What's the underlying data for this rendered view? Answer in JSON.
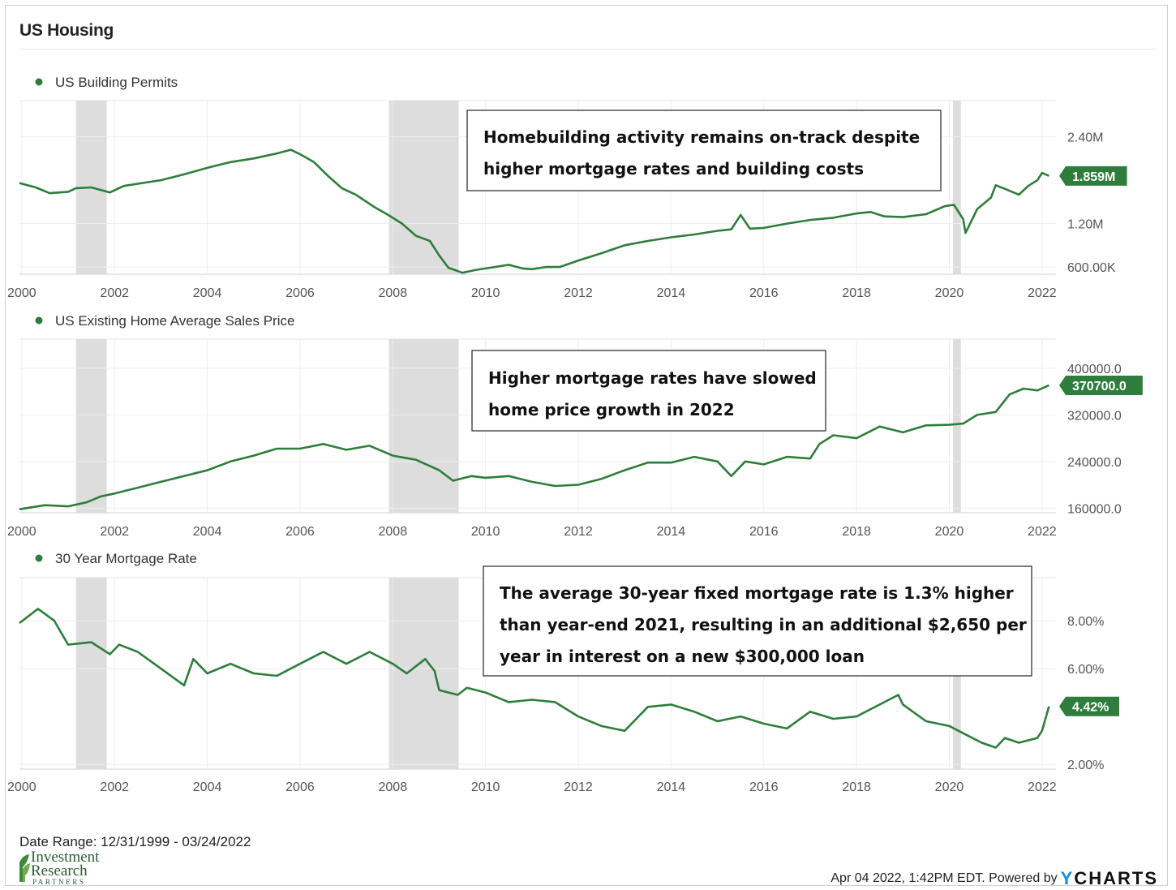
{
  "title": "US Housing",
  "date_range": "Date Range: 12/31/1999 - 03/24/2022",
  "footer_text": "Apr 04 2022, 1:42PM EDT. Powered by",
  "footer_brand_y": "Y",
  "footer_brand_rest": "CHARTS",
  "logo": {
    "line1": "Investment",
    "line2": "Research",
    "line3": "PARTNERS"
  },
  "colors": {
    "line": "#2e7d3c",
    "recession": "#dddddd",
    "flag": "#2e7d3c"
  },
  "chart_data": [
    {
      "type": "line",
      "series_name": "US Building Permits",
      "annotation": [
        "Homebuilding activity remains on-track despite",
        "higher mortgage rates and building costs"
      ],
      "last_value_label": "1.859M",
      "last_value": 1859000,
      "y_ticks": [
        {
          "v": 600000,
          "label": "600.00K"
        },
        {
          "v": 1200000,
          "label": "1.20M"
        },
        {
          "v": 2400000,
          "label": "2.40M"
        }
      ],
      "ylim": [
        500000,
        2900000
      ],
      "x_ticks": [
        "2000",
        "2002",
        "2004",
        "2006",
        "2008",
        "2010",
        "2012",
        "2014",
        "2016",
        "2018",
        "2020",
        "2022"
      ],
      "xlim": [
        1999.95,
        2022.3
      ],
      "recessions": [
        [
          2001.17,
          2001.83
        ],
        [
          2007.92,
          2009.42
        ],
        [
          2020.08,
          2020.25
        ]
      ],
      "points": [
        [
          1999.95,
          1760000
        ],
        [
          2000.3,
          1700000
        ],
        [
          2000.6,
          1620000
        ],
        [
          2001.0,
          1640000
        ],
        [
          2001.17,
          1690000
        ],
        [
          2001.5,
          1700000
        ],
        [
          2001.9,
          1630000
        ],
        [
          2002.2,
          1720000
        ],
        [
          2002.5,
          1750000
        ],
        [
          2003.0,
          1800000
        ],
        [
          2003.5,
          1880000
        ],
        [
          2004.0,
          1970000
        ],
        [
          2004.5,
          2050000
        ],
        [
          2005.0,
          2100000
        ],
        [
          2005.5,
          2170000
        ],
        [
          2005.8,
          2220000
        ],
        [
          2006.0,
          2160000
        ],
        [
          2006.3,
          2050000
        ],
        [
          2006.6,
          1860000
        ],
        [
          2006.9,
          1690000
        ],
        [
          2007.2,
          1600000
        ],
        [
          2007.6,
          1430000
        ],
        [
          2007.9,
          1320000
        ],
        [
          2008.2,
          1200000
        ],
        [
          2008.5,
          1030000
        ],
        [
          2008.8,
          960000
        ],
        [
          2009.0,
          760000
        ],
        [
          2009.2,
          590000
        ],
        [
          2009.5,
          520000
        ],
        [
          2009.8,
          560000
        ],
        [
          2010.2,
          600000
        ],
        [
          2010.5,
          630000
        ],
        [
          2010.8,
          580000
        ],
        [
          2011.0,
          570000
        ],
        [
          2011.3,
          600000
        ],
        [
          2011.6,
          600000
        ],
        [
          2012.0,
          690000
        ],
        [
          2012.5,
          790000
        ],
        [
          2013.0,
          900000
        ],
        [
          2013.5,
          960000
        ],
        [
          2014.0,
          1010000
        ],
        [
          2014.5,
          1050000
        ],
        [
          2015.0,
          1100000
        ],
        [
          2015.3,
          1120000
        ],
        [
          2015.5,
          1320000
        ],
        [
          2015.7,
          1130000
        ],
        [
          2016.0,
          1140000
        ],
        [
          2016.5,
          1200000
        ],
        [
          2017.0,
          1250000
        ],
        [
          2017.5,
          1280000
        ],
        [
          2018.0,
          1340000
        ],
        [
          2018.3,
          1360000
        ],
        [
          2018.6,
          1300000
        ],
        [
          2019.0,
          1290000
        ],
        [
          2019.5,
          1330000
        ],
        [
          2019.9,
          1440000
        ],
        [
          2020.1,
          1460000
        ],
        [
          2020.3,
          1260000
        ],
        [
          2020.35,
          1070000
        ],
        [
          2020.6,
          1400000
        ],
        [
          2020.9,
          1560000
        ],
        [
          2021.0,
          1730000
        ],
        [
          2021.2,
          1680000
        ],
        [
          2021.5,
          1600000
        ],
        [
          2021.7,
          1720000
        ],
        [
          2021.9,
          1800000
        ],
        [
          2022.0,
          1900000
        ],
        [
          2022.15,
          1860000
        ]
      ]
    },
    {
      "type": "line",
      "series_name": "US Existing Home Average Sales Price",
      "annotation": [
        "Higher mortgage rates have slowed",
        "home price growth in 2022"
      ],
      "last_value_label": "370700.0",
      "last_value": 370700,
      "y_ticks": [
        {
          "v": 160000,
          "label": "160000.0"
        },
        {
          "v": 240000,
          "label": "240000.0"
        },
        {
          "v": 320000,
          "label": "320000.0"
        },
        {
          "v": 400000,
          "label": "400000.0"
        }
      ],
      "ylim": [
        152000,
        450000
      ],
      "x_ticks": [
        "2000",
        "2002",
        "2004",
        "2006",
        "2008",
        "2010",
        "2012",
        "2014",
        "2016",
        "2018",
        "2020",
        "2022"
      ],
      "xlim": [
        1999.95,
        2022.3
      ],
      "recessions": [
        [
          2001.17,
          2001.83
        ],
        [
          2007.92,
          2009.42
        ],
        [
          2020.08,
          2020.25
        ]
      ],
      "points": [
        [
          1999.95,
          158000
        ],
        [
          2000.5,
          165000
        ],
        [
          2001.0,
          163000
        ],
        [
          2001.4,
          170000
        ],
        [
          2001.7,
          180000
        ],
        [
          2002.0,
          185000
        ],
        [
          2002.5,
          195000
        ],
        [
          2003.0,
          205000
        ],
        [
          2003.5,
          215000
        ],
        [
          2004.0,
          225000
        ],
        [
          2004.5,
          240000
        ],
        [
          2005.0,
          250000
        ],
        [
          2005.5,
          262000
        ],
        [
          2006.0,
          262000
        ],
        [
          2006.5,
          270000
        ],
        [
          2007.0,
          260000
        ],
        [
          2007.5,
          267000
        ],
        [
          2008.0,
          250000
        ],
        [
          2008.5,
          243000
        ],
        [
          2009.0,
          225000
        ],
        [
          2009.3,
          207000
        ],
        [
          2009.7,
          215000
        ],
        [
          2010.0,
          212000
        ],
        [
          2010.5,
          215000
        ],
        [
          2011.0,
          205000
        ],
        [
          2011.5,
          198000
        ],
        [
          2012.0,
          200000
        ],
        [
          2012.5,
          210000
        ],
        [
          2013.0,
          225000
        ],
        [
          2013.5,
          238000
        ],
        [
          2014.0,
          238000
        ],
        [
          2014.5,
          248000
        ],
        [
          2015.0,
          240000
        ],
        [
          2015.3,
          215000
        ],
        [
          2015.6,
          240000
        ],
        [
          2016.0,
          235000
        ],
        [
          2016.5,
          248000
        ],
        [
          2017.0,
          245000
        ],
        [
          2017.2,
          270000
        ],
        [
          2017.5,
          285000
        ],
        [
          2018.0,
          280000
        ],
        [
          2018.5,
          300000
        ],
        [
          2019.0,
          290000
        ],
        [
          2019.5,
          302000
        ],
        [
          2020.0,
          303000
        ],
        [
          2020.3,
          305000
        ],
        [
          2020.6,
          320000
        ],
        [
          2021.0,
          325000
        ],
        [
          2021.3,
          355000
        ],
        [
          2021.6,
          365000
        ],
        [
          2021.9,
          362000
        ],
        [
          2022.15,
          370700
        ]
      ]
    },
    {
      "type": "line",
      "series_name": "30 Year Mortgage Rate",
      "annotation": [
        "The average 30-year fixed mortgage rate is 1.3% higher",
        "than year-end 2021, resulting in an additional $2,650 per",
        "year in interest on a new $300,000 loan"
      ],
      "last_value_label": "4.42%",
      "last_value": 4.42,
      "y_ticks": [
        {
          "v": 2,
          "label": "2.00%"
        },
        {
          "v": 6,
          "label": "6.00%"
        },
        {
          "v": 8,
          "label": "8.00%"
        }
      ],
      "ylim": [
        1.8,
        9.8
      ],
      "x_ticks": [
        "2000",
        "2002",
        "2004",
        "2006",
        "2008",
        "2010",
        "2012",
        "2014",
        "2016",
        "2018",
        "2020",
        "2022"
      ],
      "xlim": [
        1999.95,
        2022.3
      ],
      "recessions": [
        [
          2001.17,
          2001.83
        ],
        [
          2007.92,
          2009.42
        ],
        [
          2020.08,
          2020.25
        ]
      ],
      "points": [
        [
          1999.95,
          7.9
        ],
        [
          2000.35,
          8.5
        ],
        [
          2000.7,
          8.0
        ],
        [
          2001.0,
          7.0
        ],
        [
          2001.5,
          7.1
        ],
        [
          2001.9,
          6.6
        ],
        [
          2002.1,
          7.0
        ],
        [
          2002.5,
          6.7
        ],
        [
          2003.0,
          6.0
        ],
        [
          2003.5,
          5.3
        ],
        [
          2003.7,
          6.4
        ],
        [
          2004.0,
          5.8
        ],
        [
          2004.5,
          6.2
        ],
        [
          2005.0,
          5.8
        ],
        [
          2005.5,
          5.7
        ],
        [
          2006.0,
          6.2
        ],
        [
          2006.5,
          6.7
        ],
        [
          2007.0,
          6.2
        ],
        [
          2007.5,
          6.7
        ],
        [
          2008.0,
          6.2
        ],
        [
          2008.3,
          5.8
        ],
        [
          2008.7,
          6.4
        ],
        [
          2008.9,
          5.9
        ],
        [
          2009.0,
          5.1
        ],
        [
          2009.4,
          4.9
        ],
        [
          2009.6,
          5.2
        ],
        [
          2010.0,
          5.0
        ],
        [
          2010.5,
          4.6
        ],
        [
          2011.0,
          4.7
        ],
        [
          2011.5,
          4.6
        ],
        [
          2012.0,
          4.0
        ],
        [
          2012.5,
          3.6
        ],
        [
          2013.0,
          3.4
        ],
        [
          2013.5,
          4.4
        ],
        [
          2014.0,
          4.5
        ],
        [
          2014.5,
          4.2
        ],
        [
          2015.0,
          3.8
        ],
        [
          2015.5,
          4.0
        ],
        [
          2016.0,
          3.7
        ],
        [
          2016.5,
          3.5
        ],
        [
          2017.0,
          4.2
        ],
        [
          2017.5,
          3.9
        ],
        [
          2018.0,
          4.0
        ],
        [
          2018.5,
          4.5
        ],
        [
          2018.9,
          4.9
        ],
        [
          2019.0,
          4.5
        ],
        [
          2019.5,
          3.8
        ],
        [
          2020.0,
          3.6
        ],
        [
          2020.3,
          3.3
        ],
        [
          2020.7,
          2.9
        ],
        [
          2021.0,
          2.7
        ],
        [
          2021.2,
          3.1
        ],
        [
          2021.5,
          2.9
        ],
        [
          2021.9,
          3.1
        ],
        [
          2022.0,
          3.4
        ],
        [
          2022.15,
          4.42
        ]
      ]
    }
  ]
}
